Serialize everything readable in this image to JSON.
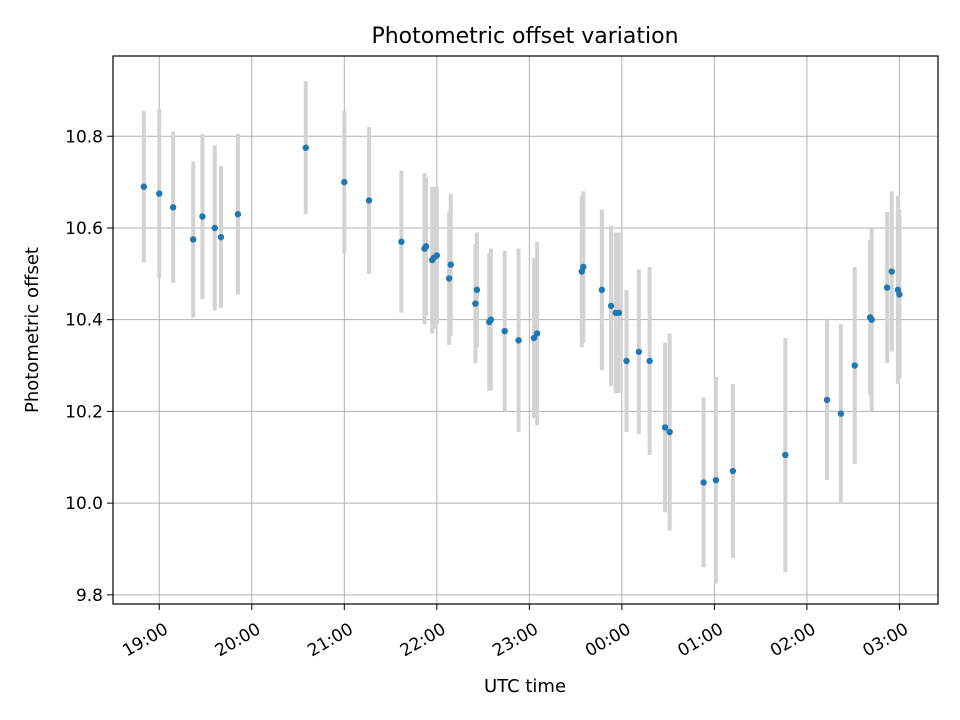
{
  "chart_data": {
    "type": "scatter",
    "title": "Photometric offset variation",
    "xlabel": "UTC time",
    "ylabel": "Photometric offset",
    "x_axis_type": "time",
    "x_range": [
      "18:30",
      "03:25"
    ],
    "ylim": [
      9.78,
      10.975
    ],
    "grid": true,
    "legend": "none",
    "x_ticks": [
      "19:00",
      "20:00",
      "21:00",
      "22:00",
      "23:00",
      "00:00",
      "01:00",
      "02:00",
      "03:00"
    ],
    "y_ticks": [
      "9.8",
      "10.0",
      "10.2",
      "10.4",
      "10.6",
      "10.8"
    ],
    "colors": {
      "marker": "#1f77b4",
      "error_bar": "#d3d3d3",
      "grid": "#b0b0b0"
    },
    "points": [
      {
        "x": "18:50",
        "y": 10.69,
        "yerr": 0.165
      },
      {
        "x": "19:00",
        "y": 10.675,
        "yerr": 0.185
      },
      {
        "x": "19:09",
        "y": 10.645,
        "yerr": 0.165
      },
      {
        "x": "19:22",
        "y": 10.575,
        "yerr": 0.17
      },
      {
        "x": "19:28",
        "y": 10.625,
        "yerr": 0.18
      },
      {
        "x": "19:36",
        "y": 10.6,
        "yerr": 0.18
      },
      {
        "x": "19:40",
        "y": 10.58,
        "yerr": 0.155
      },
      {
        "x": "19:51",
        "y": 10.63,
        "yerr": 0.175
      },
      {
        "x": "20:35",
        "y": 10.775,
        "yerr": 0.145
      },
      {
        "x": "21:00",
        "y": 10.7,
        "yerr": 0.155
      },
      {
        "x": "21:16",
        "y": 10.66,
        "yerr": 0.16
      },
      {
        "x": "21:37",
        "y": 10.57,
        "yerr": 0.155
      },
      {
        "x": "21:52",
        "y": 10.555,
        "yerr": 0.165
      },
      {
        "x": "21:53",
        "y": 10.56,
        "yerr": 0.15
      },
      {
        "x": "21:57",
        "y": 10.53,
        "yerr": 0.16
      },
      {
        "x": "21:58",
        "y": 10.535,
        "yerr": 0.155
      },
      {
        "x": "22:00",
        "y": 10.54,
        "yerr": 0.15
      },
      {
        "x": "22:08",
        "y": 10.49,
        "yerr": 0.145
      },
      {
        "x": "22:09",
        "y": 10.52,
        "yerr": 0.155
      },
      {
        "x": "22:25",
        "y": 10.435,
        "yerr": 0.13
      },
      {
        "x": "22:26",
        "y": 10.465,
        "yerr": 0.125
      },
      {
        "x": "22:34",
        "y": 10.395,
        "yerr": 0.15
      },
      {
        "x": "22:35",
        "y": 10.4,
        "yerr": 0.155
      },
      {
        "x": "22:44",
        "y": 10.375,
        "yerr": 0.175
      },
      {
        "x": "22:53",
        "y": 10.355,
        "yerr": 0.2
      },
      {
        "x": "23:03",
        "y": 10.36,
        "yerr": 0.175
      },
      {
        "x": "23:05",
        "y": 10.37,
        "yerr": 0.2
      },
      {
        "x": "23:34",
        "y": 10.505,
        "yerr": 0.165
      },
      {
        "x": "23:35",
        "y": 10.515,
        "yerr": 0.165
      },
      {
        "x": "23:47",
        "y": 10.465,
        "yerr": 0.175
      },
      {
        "x": "23:53",
        "y": 10.43,
        "yerr": 0.175
      },
      {
        "x": "23:56",
        "y": 10.415,
        "yerr": 0.175
      },
      {
        "x": "23:58",
        "y": 10.415,
        "yerr": 0.175
      },
      {
        "x": "00:03",
        "y": 10.31,
        "yerr": 0.155
      },
      {
        "x": "00:11",
        "y": 10.33,
        "yerr": 0.18
      },
      {
        "x": "00:18",
        "y": 10.31,
        "yerr": 0.205
      },
      {
        "x": "00:28",
        "y": 10.165,
        "yerr": 0.185
      },
      {
        "x": "00:31",
        "y": 10.155,
        "yerr": 0.215
      },
      {
        "x": "00:53",
        "y": 10.045,
        "yerr": 0.185
      },
      {
        "x": "01:01",
        "y": 10.05,
        "yerr": 0.225
      },
      {
        "x": "01:12",
        "y": 10.07,
        "yerr": 0.19
      },
      {
        "x": "01:46",
        "y": 10.105,
        "yerr": 0.255
      },
      {
        "x": "02:13",
        "y": 10.225,
        "yerr": 0.175
      },
      {
        "x": "02:22",
        "y": 10.195,
        "yerr": 0.195
      },
      {
        "x": "02:31",
        "y": 10.3,
        "yerr": 0.215
      },
      {
        "x": "02:41",
        "y": 10.405,
        "yerr": 0.17
      },
      {
        "x": "02:42",
        "y": 10.4,
        "yerr": 0.2
      },
      {
        "x": "02:52",
        "y": 10.47,
        "yerr": 0.165
      },
      {
        "x": "02:55",
        "y": 10.505,
        "yerr": 0.175
      },
      {
        "x": "02:59",
        "y": 10.465,
        "yerr": 0.205
      },
      {
        "x": "03:00",
        "y": 10.455,
        "yerr": 0.185
      }
    ]
  }
}
